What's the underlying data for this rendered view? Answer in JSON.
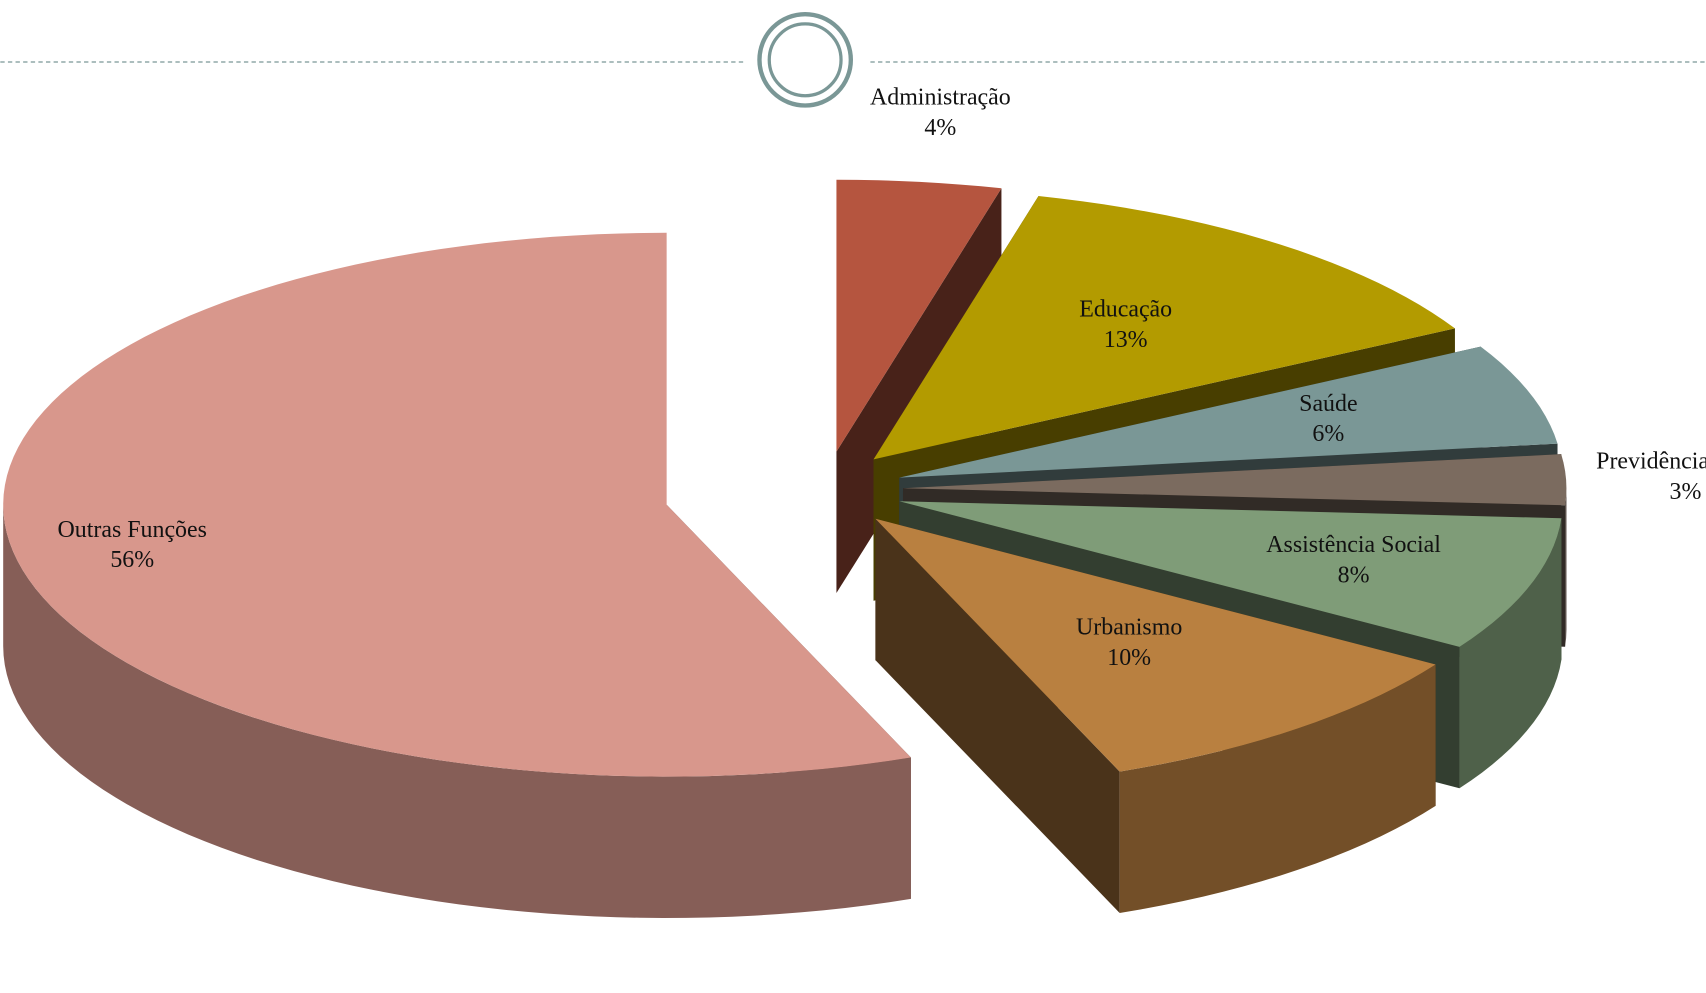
{
  "chart_data": {
    "type": "pie3d",
    "categories": [
      "Administração",
      "Educação",
      "Saúde",
      "Previdência Social",
      "Assistência Social",
      "Urbanismo",
      "Outras Funções"
    ],
    "values": [
      4,
      13,
      6,
      3,
      8,
      10,
      56
    ],
    "value_labels": [
      "4%",
      "13%",
      "6%",
      "3%",
      "8%",
      "10%",
      "56%"
    ],
    "colors": [
      "#b5553f",
      "#b39b00",
      "#7a9796",
      "#7b6b5f",
      "#7f9c78",
      "#b98040",
      "#d8978c"
    ]
  }
}
